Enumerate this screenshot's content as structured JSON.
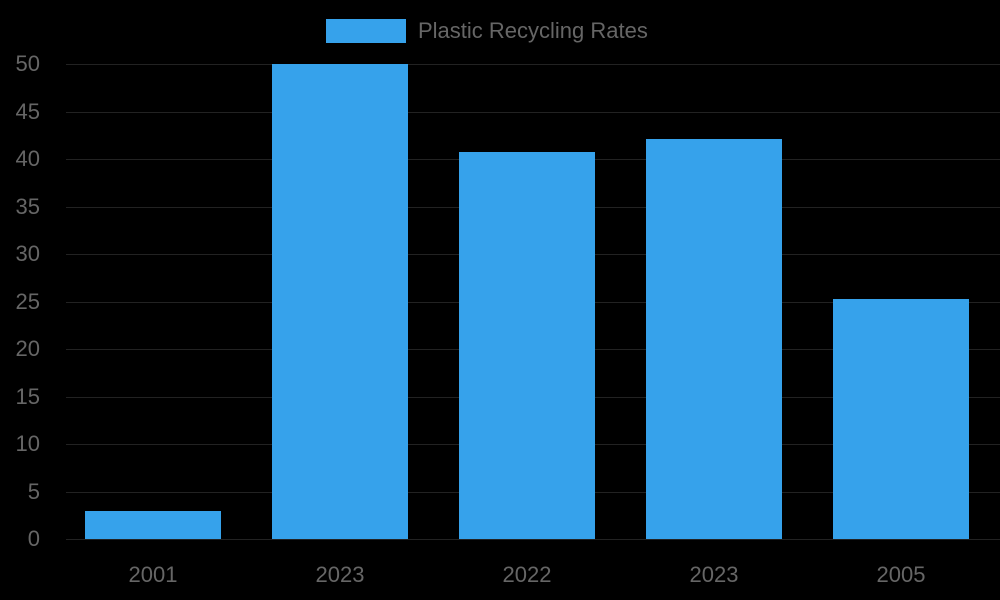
{
  "chart_data": {
    "type": "bar",
    "title": "",
    "xlabel": "",
    "ylabel": "",
    "categories": [
      "2001",
      "2023",
      "2022",
      "2023",
      "2005"
    ],
    "series": [
      {
        "name": "Plastic Recycling Rates",
        "values": [
          3.0,
          50.0,
          40.7,
          42.1,
          25.3
        ],
        "color": "#36a2eb"
      }
    ],
    "ylim": [
      0,
      50
    ],
    "yticks": [
      0,
      5,
      10,
      15,
      20,
      25,
      30,
      35,
      40,
      45,
      50
    ],
    "grid": true,
    "legend_position": "top"
  },
  "legend": {
    "label": "Plastic Recycling Rates",
    "color": "#36a2eb"
  },
  "x_labels": [
    "2001",
    "2023",
    "2022",
    "2023",
    "2005"
  ],
  "y_labels": [
    "0",
    "5",
    "10",
    "15",
    "20",
    "25",
    "30",
    "35",
    "40",
    "45",
    "50"
  ]
}
